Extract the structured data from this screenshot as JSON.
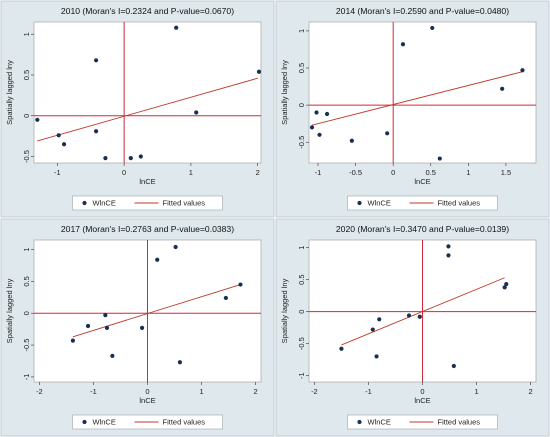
{
  "colors": {
    "panel_bg": "#dfe8ed",
    "plot_bg": "#ffffff",
    "points": "#1a3050",
    "fitted": "#c0392b",
    "axis_lines": "#d2283c",
    "legend_bg": "#ffffff"
  },
  "legend": {
    "points_label": "WlnCE",
    "line_label": "Fitted values"
  },
  "chart_data": [
    {
      "type": "scatter",
      "title": "2010 (Moran's I=0.2324 and P-value=0.0670)",
      "xlabel": "lnCE",
      "ylabel": "Spatially lagged lny",
      "xlim": [
        -1.35,
        2.05
      ],
      "ylim": [
        -0.58,
        1.15
      ],
      "xticks": [
        -1,
        0,
        1,
        2
      ],
      "yticks": [
        -0.5,
        0,
        0.5,
        1
      ],
      "ytick_labels": [
        "-0.5",
        "0",
        "0.5",
        "1"
      ],
      "points": [
        {
          "x": -1.3,
          "y": -0.05
        },
        {
          "x": -0.98,
          "y": -0.24
        },
        {
          "x": -0.9,
          "y": -0.35
        },
        {
          "x": -0.42,
          "y": 0.68
        },
        {
          "x": -0.42,
          "y": -0.19
        },
        {
          "x": -0.28,
          "y": -0.52
        },
        {
          "x": 0.1,
          "y": -0.52
        },
        {
          "x": 0.25,
          "y": -0.5
        },
        {
          "x": 0.78,
          "y": 1.08
        },
        {
          "x": 1.08,
          "y": 0.04
        },
        {
          "x": 2.02,
          "y": 0.54
        }
      ],
      "fitted": [
        [
          -1.3,
          -0.31
        ],
        [
          2.0,
          0.46
        ]
      ]
    },
    {
      "type": "scatter",
      "title": "2014 (Moran's I=0.2590 and P-value=0.0480)",
      "xlabel": "lnCE",
      "ylabel": "Spatially lagged lny",
      "xlim": [
        -1.12,
        1.9
      ],
      "ylim": [
        -0.78,
        1.12
      ],
      "xticks": [
        -1,
        -0.5,
        0,
        0.5,
        1,
        1.5
      ],
      "yticks": [
        -0.5,
        0,
        0.5,
        1
      ],
      "ytick_labels": [
        "-0.5",
        "0",
        "0.5",
        "1"
      ],
      "points": [
        {
          "x": -1.08,
          "y": -0.3
        },
        {
          "x": -1.02,
          "y": -0.1
        },
        {
          "x": -0.98,
          "y": -0.4
        },
        {
          "x": -0.88,
          "y": -0.12
        },
        {
          "x": -0.55,
          "y": -0.48
        },
        {
          "x": -0.08,
          "y": -0.38
        },
        {
          "x": 0.13,
          "y": 0.82
        },
        {
          "x": 0.52,
          "y": 1.04
        },
        {
          "x": 0.62,
          "y": -0.72
        },
        {
          "x": 1.45,
          "y": 0.22
        },
        {
          "x": 1.72,
          "y": 0.47
        }
      ],
      "fitted": [
        [
          -1.08,
          -0.27
        ],
        [
          1.72,
          0.45
        ]
      ]
    },
    {
      "type": "scatter",
      "title": "2017 (Moran's I=0.2763 and P-value=0.0383)",
      "xlabel": "lnCE",
      "ylabel": "Spatially lagged lny",
      "xlim": [
        -2.1,
        2.1
      ],
      "ylim": [
        -1.08,
        1.15
      ],
      "xticks": [
        -2,
        -1,
        0,
        1,
        2
      ],
      "yticks": [
        -1,
        -0.5,
        0,
        0.5,
        1
      ],
      "ytick_labels": [
        "-1",
        "-0.5",
        "0",
        "0.5",
        "1"
      ],
      "points": [
        {
          "x": -1.38,
          "y": -0.43
        },
        {
          "x": -1.1,
          "y": -0.2
        },
        {
          "x": -0.78,
          "y": -0.03
        },
        {
          "x": -0.75,
          "y": -0.23
        },
        {
          "x": -0.65,
          "y": -0.67
        },
        {
          "x": -0.1,
          "y": -0.23
        },
        {
          "x": 0.18,
          "y": 0.84
        },
        {
          "x": 0.52,
          "y": 1.04
        },
        {
          "x": 0.6,
          "y": -0.77
        },
        {
          "x": 1.45,
          "y": 0.24
        },
        {
          "x": 1.72,
          "y": 0.45
        }
      ],
      "fitted": [
        [
          -1.38,
          -0.37
        ],
        [
          1.72,
          0.45
        ]
      ]
    },
    {
      "type": "scatter",
      "title": "2020 (Moran's I=0.3470 and P-value=0.0139)",
      "xlabel": "lnCE",
      "ylabel": "Spatially lagged lny",
      "xlim": [
        -2.1,
        2.1
      ],
      "ylim": [
        -1.1,
        1.12
      ],
      "xticks": [
        -2,
        -1,
        0,
        1,
        2
      ],
      "yticks": [
        -1,
        -0.5,
        0,
        0.5,
        1
      ],
      "ytick_labels": [
        "-1",
        "-0.5",
        "0",
        "0.5",
        "1"
      ],
      "points": [
        {
          "x": -1.5,
          "y": -0.58
        },
        {
          "x": -0.92,
          "y": -0.28
        },
        {
          "x": -0.8,
          "y": -0.12
        },
        {
          "x": -0.85,
          "y": -0.7
        },
        {
          "x": -0.25,
          "y": -0.06
        },
        {
          "x": -0.05,
          "y": -0.08
        },
        {
          "x": 0.48,
          "y": 1.02
        },
        {
          "x": 0.48,
          "y": 0.88
        },
        {
          "x": 0.58,
          "y": -0.85
        },
        {
          "x": 1.52,
          "y": 0.38
        },
        {
          "x": 1.55,
          "y": 0.43
        }
      ],
      "fitted": [
        [
          -1.5,
          -0.52
        ],
        [
          1.52,
          0.53
        ]
      ]
    }
  ]
}
